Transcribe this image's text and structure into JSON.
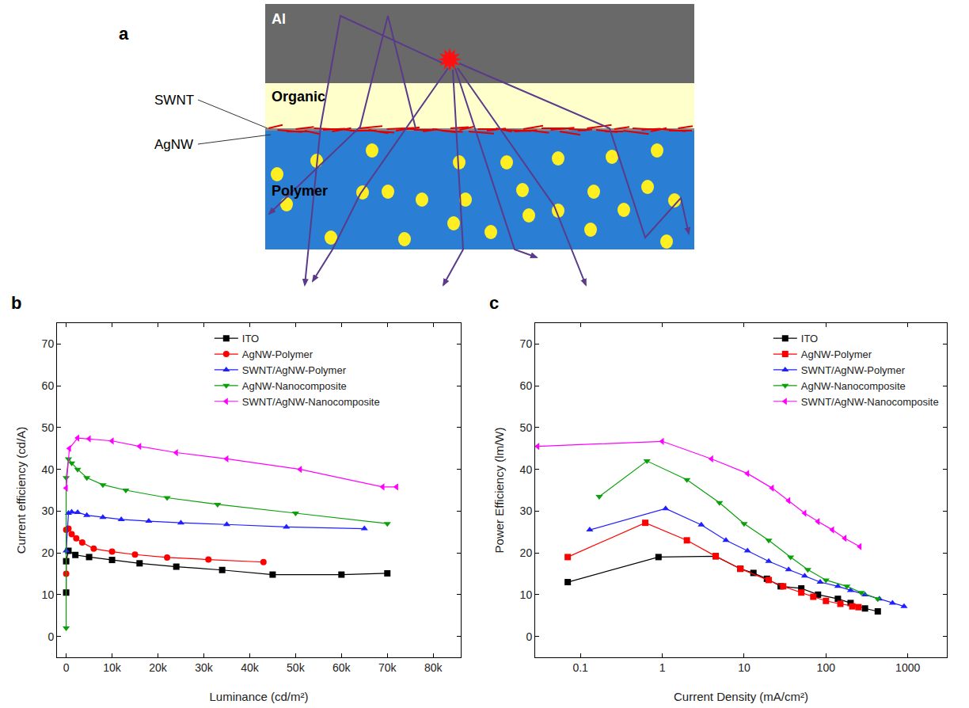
{
  "diagram": {
    "panel": "a",
    "layers": [
      "Al",
      "Organic",
      "Polymer"
    ],
    "pointers": [
      "SWNT",
      "AgNW"
    ]
  },
  "chart_data": [
    {
      "panel": "b",
      "type": "line",
      "x_label": "Luminance (cd/m²)",
      "y_label": "Current efficiency (cd/A)",
      "xlim": [
        -2000,
        86000
      ],
      "ylim": [
        -5,
        75
      ],
      "xticks": [
        0,
        {
          "value": 10000,
          "label": "10k"
        },
        {
          "value": 20000,
          "label": "20k"
        },
        {
          "value": 30000,
          "label": "30k"
        },
        {
          "value": 40000,
          "label": "40k"
        },
        {
          "value": 50000,
          "label": "50k"
        },
        {
          "value": 60000,
          "label": "60k"
        },
        {
          "value": 70000,
          "label": "70k"
        },
        {
          "value": 80000,
          "label": "80k"
        }
      ],
      "yticks": [
        0,
        10,
        20,
        30,
        40,
        50,
        60,
        70
      ],
      "grid": false,
      "legend": "upper center",
      "series": [
        {
          "name": "ITO",
          "color": "#000000",
          "marker": "square",
          "x": [
            0,
            0,
            500,
            2000,
            5000,
            10000,
            16000,
            24000,
            34000,
            45000,
            60000,
            70000
          ],
          "values": [
            10.5,
            18,
            20.5,
            19.5,
            19,
            18.3,
            17.5,
            16.7,
            15.9,
            14.8,
            14.8,
            15.1
          ]
        },
        {
          "name": "AgNW-Polymer",
          "color": "#ff0000",
          "marker": "circle",
          "x": [
            0,
            0,
            500,
            1200,
            2200,
            3500,
            6000,
            10000,
            15000,
            22000,
            31000,
            43000
          ],
          "values": [
            15,
            25.5,
            25.8,
            24.5,
            23.5,
            22.5,
            21,
            20.3,
            19.6,
            18.9,
            18.4,
            17.8
          ]
        },
        {
          "name": "SWNT/AgNW-Polymer",
          "color": "#1f1fff",
          "marker": "triangle-up",
          "x": [
            0,
            500,
            1200,
            2500,
            4500,
            8000,
            12000,
            18000,
            25000,
            35000,
            48000,
            65000
          ],
          "values": [
            20.5,
            29.5,
            29.8,
            29.7,
            29,
            28.5,
            28,
            27.6,
            27.2,
            26.8,
            26.2,
            25.8
          ]
        },
        {
          "name": "AgNW-Nanocomposite",
          "color": "#0aa00a",
          "marker": "triangle-down",
          "x": [
            0,
            0,
            500,
            1200,
            2500,
            4500,
            8000,
            13000,
            22000,
            33000,
            50000,
            70000
          ],
          "values": [
            2,
            38,
            42.5,
            41.5,
            40,
            38,
            36.3,
            35,
            33.2,
            31.6,
            29.5,
            27
          ]
        },
        {
          "name": "SWNT/AgNW-Nanocomposite",
          "color": "#ff00ff",
          "marker": "triangle-left",
          "x": [
            0,
            700,
            2500,
            5000,
            10000,
            16000,
            24000,
            35000,
            51000,
            69000,
            72000
          ],
          "values": [
            35.5,
            45,
            47.5,
            47.3,
            46.8,
            45.5,
            44,
            42.5,
            40,
            35.8,
            35.8
          ]
        }
      ]
    },
    {
      "panel": "c",
      "type": "line",
      "x_label": "Current Density (mA/cm²)",
      "y_label": "Power Efficiency (lm/W)",
      "log": "x",
      "xlim": [
        0.028,
        3000
      ],
      "ylim": [
        -5,
        75
      ],
      "xticks": [
        0.1,
        1,
        10,
        100,
        1000
      ],
      "yticks": [
        0,
        10,
        20,
        30,
        40,
        50,
        60,
        70
      ],
      "grid": false,
      "legend": "upper right",
      "series": [
        {
          "name": "ITO",
          "color": "#000000",
          "marker": "square",
          "x": [
            0.07,
            0.9,
            4.5,
            9,
            13,
            19,
            28,
            50,
            80,
            140,
            200,
            300,
            430
          ],
          "values": [
            13,
            19,
            19.2,
            16.2,
            15.2,
            13.8,
            12,
            11.5,
            10,
            9,
            8,
            6.7,
            6
          ]
        },
        {
          "name": "AgNW-Polymer",
          "color": "#ff0000",
          "marker": "square",
          "x": [
            0.07,
            0.62,
            2,
            4.5,
            9,
            20,
            30,
            50,
            70,
            100,
            150,
            210,
            250
          ],
          "values": [
            19,
            27.2,
            23,
            19.2,
            16.2,
            13.5,
            12,
            10.5,
            9.5,
            8.5,
            7.8,
            7.2,
            7
          ]
        },
        {
          "name": "SWNT/AgNW-Polymer",
          "color": "#1f1fff",
          "marker": "triangle-up",
          "x": [
            0.13,
            1.1,
            3,
            6,
            11,
            20,
            35,
            55,
            85,
            140,
            200,
            300,
            450,
            650,
            900
          ],
          "values": [
            25.5,
            30.6,
            26.7,
            23,
            20.5,
            18,
            16,
            14.5,
            13,
            12,
            11,
            10,
            9,
            8,
            7.2
          ]
        },
        {
          "name": "AgNW-Nanocomposite",
          "color": "#0aa00a",
          "marker": "triangle-down",
          "x": [
            0.17,
            0.65,
            2,
            5,
            10,
            20,
            37,
            60,
            100,
            180,
            270,
            430
          ],
          "values": [
            33.5,
            42,
            37.5,
            32,
            27,
            23,
            19,
            16,
            13.5,
            12,
            10.5,
            9
          ]
        },
        {
          "name": "SWNT/AgNW-Nanocomposite",
          "color": "#ff00ff",
          "marker": "triangle-left",
          "x": [
            0.03,
            1,
            4,
            11,
            22,
            35,
            55,
            80,
            120,
            170,
            260
          ],
          "values": [
            45.5,
            46.7,
            42.5,
            39,
            35.5,
            32.5,
            29.5,
            27.5,
            25.5,
            23.5,
            21.5
          ]
        }
      ]
    }
  ]
}
